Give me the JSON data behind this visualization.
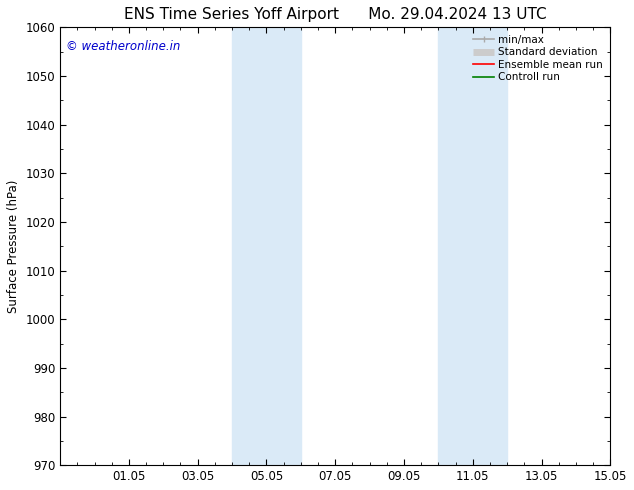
{
  "title_left": "ENS Time Series Yoff Airport",
  "title_right": "Mo. 29.04.2024 13 UTC",
  "ylabel": "Surface Pressure (hPa)",
  "ylim": [
    970,
    1060
  ],
  "yticks": [
    970,
    980,
    990,
    1000,
    1010,
    1020,
    1030,
    1040,
    1050,
    1060
  ],
  "xlim": [
    0,
    16
  ],
  "xtick_labels": [
    "01.05",
    "03.05",
    "05.05",
    "07.05",
    "09.05",
    "11.05",
    "13.05",
    "15.05"
  ],
  "xtick_positions": [
    2,
    4,
    6,
    8,
    10,
    12,
    14,
    16
  ],
  "shaded_bands": [
    {
      "x_start": 5.0,
      "x_end": 7.0,
      "color": "#daeaf7"
    },
    {
      "x_start": 11.0,
      "x_end": 13.0,
      "color": "#daeaf7"
    }
  ],
  "watermark_text": "© weatheronline.in",
  "watermark_color": "#0000cc",
  "watermark_fontsize": 8.5,
  "background_color": "#ffffff",
  "legend_items": [
    {
      "label": "min/max",
      "color": "#aaaaaa",
      "lw": 1.2
    },
    {
      "label": "Standard deviation",
      "color": "#cccccc",
      "lw": 5
    },
    {
      "label": "Ensemble mean run",
      "color": "#ff0000",
      "lw": 1.2
    },
    {
      "label": "Controll run",
      "color": "#008000",
      "lw": 1.2
    }
  ],
  "title_fontsize": 11,
  "axis_fontsize": 8.5,
  "tick_fontsize": 8.5,
  "legend_fontsize": 7.5
}
